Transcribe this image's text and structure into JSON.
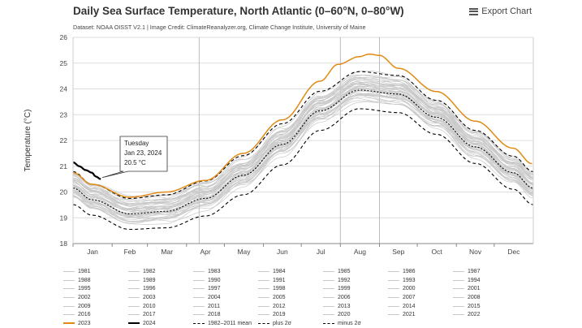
{
  "header": {
    "title": "Daily Sea Surface Temperature, North Atlantic (0–60°N, 0–80°W)",
    "subtitle": "Dataset: NOAA OISST V2.1  |  Image Credit: ClimateReanalyzer.org, Climate Change Institute, University of Maine",
    "export_label": "Export Chart"
  },
  "colors": {
    "year_line": "#c8c8c8",
    "y2023": "#e08a14",
    "y2024": "#000000",
    "mean": "#000000",
    "grid": "#dddddd",
    "axis": "#333333"
  },
  "tooltip": {
    "day": "Tuesday",
    "date": "Jan 23, 2024",
    "value": "20.5 °C"
  },
  "legend": {
    "years": [
      "1981",
      "1982",
      "1983",
      "1984",
      "1985",
      "1986",
      "1987",
      "1988",
      "1989",
      "1990",
      "1991",
      "1992",
      "1993",
      "1994",
      "1995",
      "1996",
      "1997",
      "1998",
      "1999",
      "2000",
      "2001",
      "2002",
      "2003",
      "2004",
      "2005",
      "2006",
      "2007",
      "2008",
      "2009",
      "2010",
      "2011",
      "2012",
      "2013",
      "2014",
      "2015",
      "2016",
      "2017",
      "2018",
      "2019",
      "2020",
      "2021",
      "2022"
    ],
    "y2023": "2023",
    "y2024": "2024",
    "mean": "1982–2011 mean",
    "plus": "plus 2σ",
    "minus": "minus 2σ"
  },
  "chart_data": {
    "type": "line",
    "title": "Daily Sea Surface Temperature, North Atlantic (0–60°N, 0–80°W)",
    "xlabel": "",
    "ylabel": "Temperature (°C)",
    "ylim": [
      18,
      26
    ],
    "yticks": [
      "18",
      "19",
      "20",
      "21",
      "22",
      "23",
      "24",
      "25",
      "26"
    ],
    "months": [
      "Jan",
      "Feb",
      "Mar",
      "Apr",
      "May",
      "Jun",
      "Jul",
      "Aug",
      "Sep",
      "Oct",
      "Nov",
      "Dec"
    ],
    "month_day_offsets": [
      0,
      31,
      59,
      90,
      120,
      151,
      181,
      212,
      243,
      273,
      304,
      334
    ],
    "mean_anchor_days": [
      0,
      15,
      45,
      74,
      105,
      135,
      166,
      196,
      227,
      258,
      288,
      319,
      349,
      365
    ],
    "mean_anchor_values": [
      20.15,
      19.7,
      19.15,
      19.25,
      19.75,
      20.65,
      21.85,
      23.15,
      23.95,
      23.8,
      22.9,
      21.75,
      20.75,
      20.15
    ],
    "sigma_anchor_values": [
      0.32,
      0.3,
      0.3,
      0.32,
      0.34,
      0.38,
      0.4,
      0.38,
      0.36,
      0.36,
      0.33,
      0.32,
      0.32,
      0.32
    ],
    "series": [
      {
        "name": "2023",
        "anchor_days": [
          0,
          15,
          45,
          74,
          105,
          135,
          166,
          196,
          210,
          227,
          235,
          243,
          258,
          288,
          319,
          349,
          364
        ],
        "anchor_values": [
          20.75,
          20.3,
          19.8,
          20.0,
          20.45,
          21.5,
          22.8,
          24.3,
          24.95,
          25.25,
          25.35,
          25.3,
          24.8,
          23.9,
          22.75,
          21.7,
          21.1
        ]
      },
      {
        "name": "2024",
        "anchor_days": [
          0,
          5,
          10,
          15,
          18,
          22
        ],
        "anchor_values": [
          21.15,
          21.0,
          20.85,
          20.75,
          20.6,
          20.5
        ]
      }
    ],
    "annotations": [
      {
        "type": "tooltip",
        "day": 22,
        "value": 20.5,
        "text": "Tuesday Jan 23, 2024 20.5 °C"
      }
    ],
    "vertical_markers_day": [
      0,
      100,
      212,
      243
    ]
  }
}
